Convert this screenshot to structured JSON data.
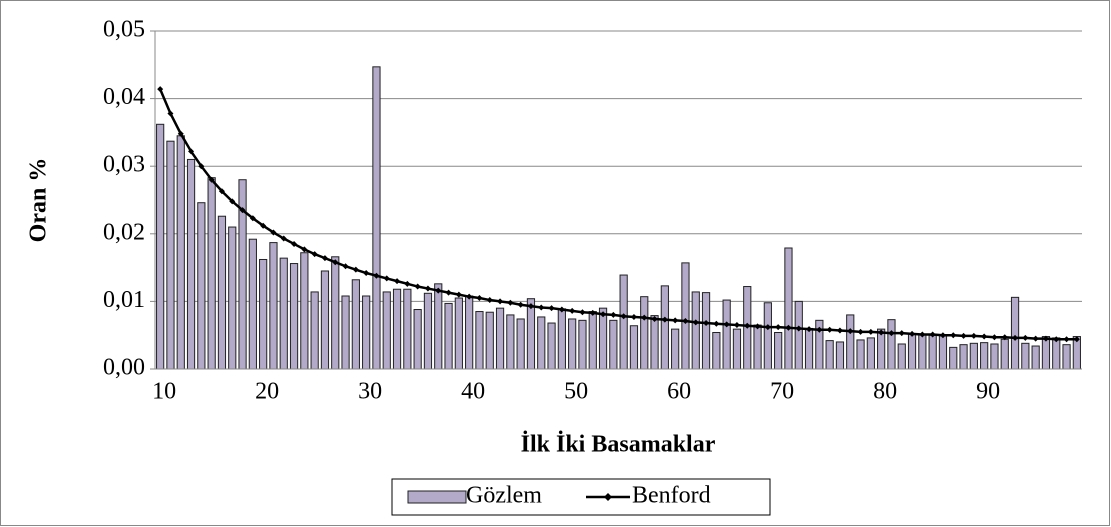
{
  "chart_data": {
    "type": "bar_line",
    "x_label": "İlk İki Basamaklar",
    "y_label": "Oran %",
    "categories": [
      10,
      null,
      null,
      null,
      null,
      null,
      null,
      null,
      null,
      null,
      20,
      null,
      null,
      null,
      null,
      null,
      null,
      null,
      null,
      null,
      30,
      null,
      null,
      null,
      null,
      null,
      null,
      null,
      null,
      null,
      40,
      null,
      null,
      null,
      null,
      null,
      null,
      null,
      null,
      null,
      50,
      null,
      null,
      null,
      null,
      null,
      null,
      null,
      null,
      null,
      60,
      null,
      null,
      null,
      null,
      null,
      null,
      null,
      null,
      null,
      70,
      null,
      null,
      null,
      null,
      null,
      null,
      null,
      null,
      null,
      80,
      null,
      null,
      null,
      null,
      null,
      null,
      null,
      null,
      null,
      90,
      null,
      null,
      null,
      null,
      null,
      null,
      null,
      null,
      null
    ],
    "series": [
      {
        "name": "Gözlem",
        "type": "bar",
        "color": "#b3a9c9",
        "values": [
          0.0362,
          0.0337,
          0.0345,
          0.031,
          0.0246,
          0.0283,
          0.0226,
          0.021,
          0.028,
          0.0192,
          0.0162,
          0.0187,
          0.0164,
          0.0156,
          0.0172,
          0.0114,
          0.0145,
          0.0166,
          0.0108,
          0.0132,
          0.0108,
          0.0447,
          0.0114,
          0.0118,
          0.0118,
          0.0088,
          0.0112,
          0.0126,
          0.0097,
          0.0105,
          0.0108,
          0.0085,
          0.0084,
          0.009,
          0.008,
          0.0074,
          0.0104,
          0.0077,
          0.0068,
          0.0089,
          0.0074,
          0.0072,
          0.0085,
          0.009,
          0.0072,
          0.0139,
          0.0064,
          0.0107,
          0.0079,
          0.0123,
          0.0059,
          0.0157,
          0.0114,
          0.0113,
          0.0054,
          0.0102,
          0.0059,
          0.0122,
          0.0065,
          0.0098,
          0.0054,
          0.0179,
          0.01,
          0.006,
          0.0072,
          0.0042,
          0.004,
          0.008,
          0.0043,
          0.0046,
          0.0059,
          0.0073,
          0.0037,
          0.0052,
          0.0051,
          0.005,
          0.0049,
          0.0032,
          0.0036,
          0.0038,
          0.0039,
          0.0037,
          0.0044,
          0.0106,
          0.0038,
          0.0034,
          0.0048,
          0.0046,
          0.0036,
          0.0048
        ]
      },
      {
        "name": "Benford",
        "type": "line",
        "color": "#000000",
        "values": [
          0.0414,
          0.0378,
          0.0348,
          0.0322,
          0.03,
          0.028,
          0.0263,
          0.0248,
          0.0235,
          0.0223,
          0.0212,
          0.0202,
          0.0193,
          0.0185,
          0.0177,
          0.017,
          0.0164,
          0.0158,
          0.0152,
          0.0147,
          0.0142,
          0.0138,
          0.0134,
          0.013,
          0.0126,
          0.0122,
          0.0119,
          0.0116,
          0.0113,
          0.011,
          0.0107,
          0.0105,
          0.0102,
          0.01,
          0.0098,
          0.0095,
          0.0093,
          0.0091,
          0.009,
          0.0088,
          0.0086,
          0.0084,
          0.0083,
          0.0081,
          0.008,
          0.0078,
          0.0077,
          0.0076,
          0.0074,
          0.0073,
          0.0072,
          0.0071,
          0.0069,
          0.0068,
          0.0067,
          0.0066,
          0.0065,
          0.0064,
          0.0063,
          0.0062,
          0.0062,
          0.0061,
          0.006,
          0.0059,
          0.0058,
          0.0058,
          0.0057,
          0.0056,
          0.0055,
          0.0055,
          0.0054,
          0.0053,
          0.0053,
          0.0052,
          0.0051,
          0.0051,
          0.005,
          0.005,
          0.0049,
          0.0049,
          0.0048,
          0.0047,
          0.0047,
          0.0046,
          0.0046,
          0.0045,
          0.0045,
          0.0044,
          0.0044,
          0.0044
        ]
      }
    ],
    "ylim": [
      0,
      0.05
    ],
    "yticks": [
      {
        "value": 0,
        "label": "0,00"
      },
      {
        "value": 0.01,
        "label": "0,01"
      },
      {
        "value": 0.02,
        "label": "0,02"
      },
      {
        "value": 0.03,
        "label": "0,03"
      },
      {
        "value": 0.04,
        "label": "0,04"
      },
      {
        "value": 0.05,
        "label": "0,05"
      }
    ],
    "grid": true,
    "legend": "bottom"
  }
}
